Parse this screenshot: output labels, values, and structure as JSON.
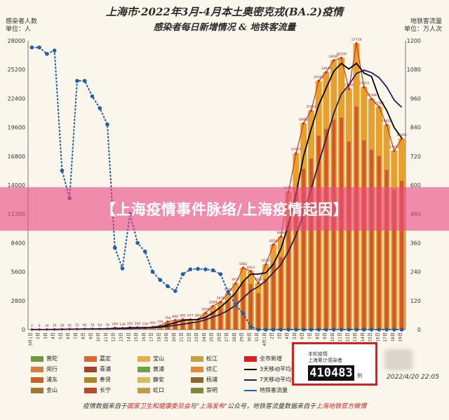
{
  "title": "上海市·2022年3月-4月本土奥密克戎(BA.2)疫情",
  "subtitle": "感染者每日新增情况 & 地铁客流量",
  "left_axis_label": {
    "line1": "感染者人数",
    "line2": "单位：人"
  },
  "right_axis_label": {
    "line1": "地铁客流量",
    "line2": "单位：万人次"
  },
  "banner_text": "【上海疫情事件脉络/上海疫情起因】",
  "total_box": {
    "label_line1": "本轮疫情",
    "label_line2": "上海累计感染者",
    "number": "410483",
    "unit": "例"
  },
  "snapshot_time": "2022/4/20 22:05",
  "footer": {
    "prefix": "疫情数据来自于",
    "source1": "国家卫生和健康委员会",
    "mid1": "与",
    "source2": "\"上海发布\"",
    "mid2": "公众号，地铁客流量数据来自于",
    "source3": "上海地铁官方微博"
  },
  "colors": {
    "bar_outer": "#e8a02a",
    "bar_inner": "#cf4a2a",
    "daily_line": "#c8382a",
    "ma3": "#000000",
    "ma7": "#2a1a5a",
    "metro": "#1f5fa8"
  },
  "legend": [
    {
      "label": "普陀",
      "color": "#6f9a3a"
    },
    {
      "label": "嘉定",
      "color": "#d56a2a"
    },
    {
      "label": "宝山",
      "color": "#e3b04a"
    },
    {
      "label": "松江",
      "color": "#c8a040"
    },
    {
      "label": "全市新增",
      "color": "#d62020"
    },
    {
      "label": "闵行",
      "color": "#d2803a"
    },
    {
      "label": "青浦",
      "color": "#a0442a"
    },
    {
      "label": "黄浦",
      "color": "#6fa04a"
    },
    {
      "label": "徐汇",
      "color": "#e08a3a"
    },
    {
      "label": "3天移动平均值",
      "color": "#000000",
      "line": true
    },
    {
      "label": "浦东",
      "color": "#c8602a"
    },
    {
      "label": "奉贤",
      "color": "#b0842a"
    },
    {
      "label": "静安",
      "color": "#d8b860"
    },
    {
      "label": "杨浦",
      "color": "#8a6a2a"
    },
    {
      "label": "7天移动平均值",
      "color": "#2a1a5a",
      "line": true
    },
    {
      "label": "金山",
      "color": "#9a7a30"
    },
    {
      "label": "长宁",
      "color": "#b84a2a"
    },
    {
      "label": "虹口",
      "color": "#c09a50"
    },
    {
      "label": "崇明",
      "color": "#7a8a3a"
    },
    {
      "label": "地铁客流量",
      "color": "#1f5fa8",
      "line": true
    }
  ],
  "chart_data": {
    "type": "bar",
    "title": "上海市·2022年3月-4月本土奥密克戎(BA.2)疫情",
    "subtitle": "感染者每日新增情况 & 地铁客流量",
    "ylabel": "感染者人数 单位：人",
    "y2label": "地铁客流量 单位：万人次",
    "ylim": [
      0,
      28000
    ],
    "y2lim": [
      0,
      1200
    ],
    "yticks": [
      0,
      2800,
      5600,
      8400,
      11200,
      14000,
      16800,
      19600,
      22400,
      25200,
      28000
    ],
    "y2ticks": [
      0,
      120,
      240,
      360,
      480,
      600,
      720,
      840,
      960,
      1080,
      1200
    ],
    "categories": [
      "3月1日",
      "2日",
      "3日",
      "4日",
      "5日",
      "6日",
      "7日",
      "8日",
      "9日",
      "10日",
      "11日",
      "12日",
      "13日",
      "14日",
      "15日",
      "16日",
      "17日",
      "18日",
      "19日",
      "20日",
      "21日",
      "22日",
      "23日",
      "24日",
      "25日",
      "26日",
      "27日",
      "28日",
      "29日",
      "30日",
      "31日",
      "4月1日",
      "2日",
      "3日",
      "4日",
      "5日",
      "6日",
      "7日",
      "8日",
      "9日",
      "10日",
      "11日",
      "12日",
      "13日",
      "14日",
      "15日",
      "16日",
      "17日",
      "18日",
      "19日"
    ],
    "series": [
      {
        "name": "全市新增",
        "values": [
          2,
          8,
          16,
          19,
          28,
          45,
          51,
          66,
          76,
          64,
          78,
          169,
          130,
          202,
          202,
          158,
          260,
          374,
          758,
          896,
          981,
          977,
          983,
          1609,
          2269,
          2676,
          3500,
          4477,
          5982,
          5653,
          4502,
          6311,
          8226,
          9006,
          13354,
          17077,
          19982,
          21222,
          24101,
          24944,
          26087,
          26330,
          23342,
          27719,
          23513,
          22348,
          21582,
          19831,
          17332,
          18495
        ]
      },
      {
        "name": "地铁客流量",
        "axis": "right",
        "values": [
          1172,
          1172,
          1145,
          1159,
          660,
          545,
          1033,
          1033,
          969,
          920,
          852,
          340,
          254,
          480,
          360,
          324,
          240,
          206,
          180,
          160,
          230,
          250,
          252,
          250,
          246,
          230,
          156,
          102,
          66,
          12,
          0,
          0,
          0,
          0,
          0,
          0,
          0,
          0,
          0,
          0,
          0,
          0,
          0,
          0,
          0,
          0,
          0,
          0,
          0,
          0
        ]
      }
    ],
    "data_labels": [
      "2",
      "8",
      "16",
      "19",
      "28",
      "45",
      "51",
      "66",
      "76",
      "64",
      "78",
      "169",
      "130",
      "202",
      "202",
      "158",
      "260",
      "374",
      "758",
      "896",
      "981",
      "977",
      "983",
      "1609",
      "2269",
      "2676",
      "3500",
      "4477",
      "5982",
      "5653",
      "4502",
      "6311",
      "8226",
      "9006",
      "13354",
      "17077",
      "19982",
      "21222",
      "24101",
      "24944",
      "26087",
      "26330",
      "23342",
      "27719",
      "23513",
      "22348",
      "21582",
      "19831",
      "17332",
      "18495"
    ],
    "legend_position": "bottom",
    "grid": false
  }
}
